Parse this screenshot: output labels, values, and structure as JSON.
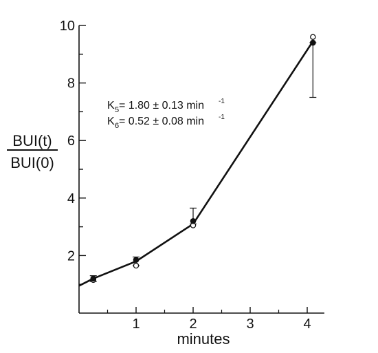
{
  "chart_data": {
    "type": "line",
    "xlabel": "minutes",
    "ylabel_numerator": "BUI(t)",
    "ylabel_denominator": "BUI(0)",
    "xlim": [
      0,
      4.3
    ],
    "ylim": [
      0,
      10
    ],
    "x_ticks": [
      1,
      2,
      3,
      4
    ],
    "y_ticks": [
      2,
      4,
      6,
      8,
      10
    ],
    "grid": false,
    "line": {
      "x": [
        0,
        0.25,
        1,
        2,
        4.1
      ],
      "y": [
        0.95,
        1.2,
        1.8,
        3.1,
        9.45
      ]
    },
    "filled_points": {
      "x": [
        0.25,
        1,
        2,
        4.1
      ],
      "y": [
        1.2,
        1.85,
        3.2,
        9.4
      ]
    },
    "open_points": {
      "x": [
        0.25,
        1,
        2,
        4.1
      ],
      "y": [
        1.15,
        1.65,
        3.05,
        9.6
      ]
    },
    "error_bars": [
      {
        "x": 0.25,
        "low": 1.1,
        "high": 1.3
      },
      {
        "x": 1,
        "low": 1.65,
        "high": 1.95
      },
      {
        "x": 2,
        "low": 3.1,
        "high": 3.65
      },
      {
        "x": 4.1,
        "low": 7.5,
        "high": 9.4
      }
    ],
    "annotations": [
      {
        "symbol": "K",
        "subscript": "5",
        "text": " = 1.80 ± 0.13 min",
        "superscript": "-1"
      },
      {
        "symbol": "K",
        "subscript": "6",
        "text": " = 0.52 ± 0.08 min",
        "superscript": "-1"
      }
    ]
  }
}
